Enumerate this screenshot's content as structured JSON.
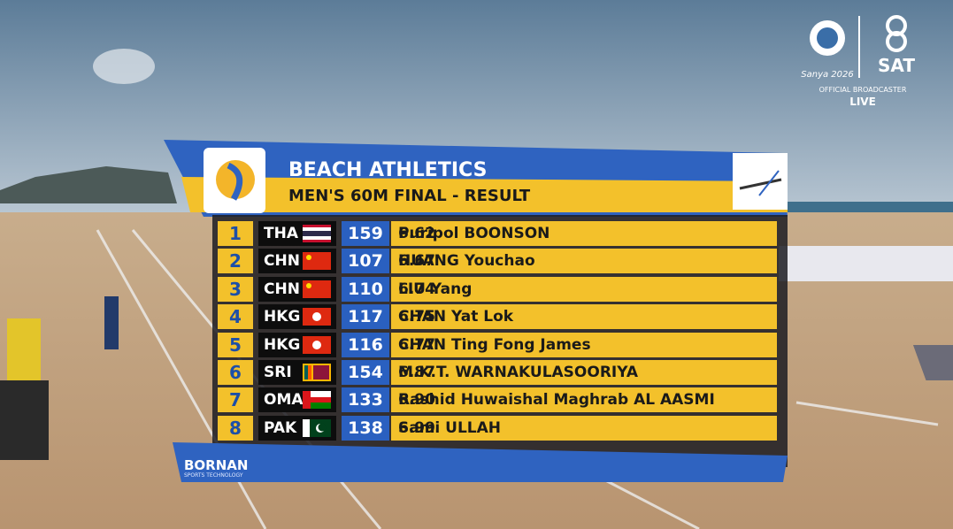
{
  "broadcast": {
    "event_logo": "Sanya 2026",
    "broadcaster_logo": "SAT",
    "broadcaster_caption": "OFFICIAL BROADCASTER",
    "live": "LIVE",
    "sponsor": "BORNAN",
    "sponsor_caption": "SPORTS TECHNOLOGY"
  },
  "header": {
    "title": "BEACH ATHLETICS",
    "subtitle": "MEN'S 60M FINAL - RESULT"
  },
  "table": {
    "rows": [
      [
        "1",
        "THA",
        "159",
        "Puripol BOONSON",
        "6.62"
      ],
      [
        "2",
        "CHN",
        "107",
        "HUANG Youchao",
        "6.67"
      ],
      [
        "3",
        "CHN",
        "110",
        "LIU Yang",
        "6.74"
      ],
      [
        "4",
        "HKG",
        "117",
        "CHAN Yat Lok",
        "6.75"
      ],
      [
        "5",
        "HKG",
        "116",
        "CHAN Ting Fong James",
        "6.77"
      ],
      [
        "6",
        "SRI",
        "154",
        "M.K.T. WARNAKULASOORIYA",
        "6.87"
      ],
      [
        "7",
        "OMA",
        "133",
        "Rashid Huwaishal Maghrab AL AASMI",
        "6.90"
      ],
      [
        "8",
        "PAK",
        "138",
        "Sami ULLAH",
        "6.99"
      ]
    ]
  }
}
